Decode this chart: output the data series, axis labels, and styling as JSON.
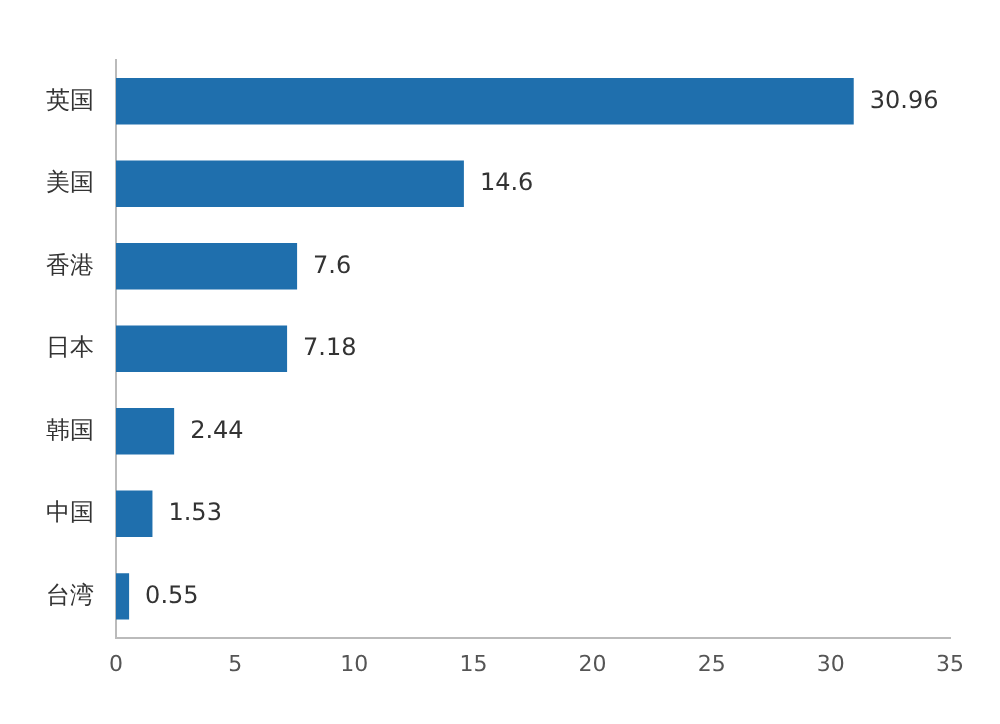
{
  "chart_data": {
    "type": "bar",
    "orientation": "horizontal",
    "categories": [
      "英国",
      "美国",
      "香港",
      "日本",
      "韩国",
      "中国",
      "台湾"
    ],
    "values": [
      30.96,
      14.6,
      7.6,
      7.18,
      2.44,
      1.53,
      0.55
    ],
    "value_labels": [
      "30.96",
      "14.6",
      "7.6",
      "7.18",
      "2.44",
      "1.53",
      "0.55"
    ],
    "color": "#1f6fad",
    "xlim": [
      0,
      35
    ],
    "xticks": [
      0,
      5,
      10,
      15,
      20,
      25,
      30,
      35
    ],
    "grid": false,
    "legend": false
  }
}
